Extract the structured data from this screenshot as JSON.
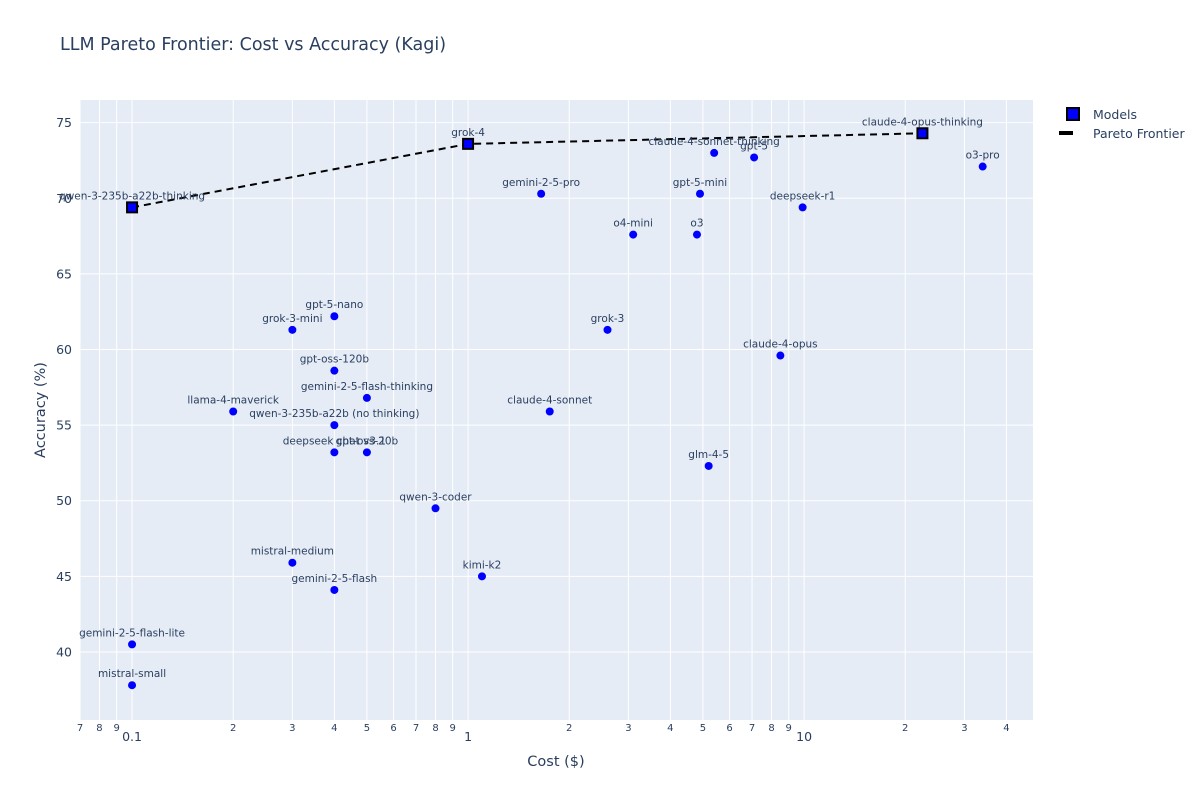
{
  "chart_data": {
    "type": "scatter",
    "title": "LLM Pareto Frontier: Cost vs Accuracy (Kagi)",
    "xlabel": "Cost ($)",
    "ylabel": "Accuracy (%)",
    "x_scale": "log",
    "xlim": [
      0.07,
      48
    ],
    "ylim": [
      35.5,
      76.5
    ],
    "y_ticks": [
      40,
      45,
      50,
      55,
      60,
      65,
      70,
      75
    ],
    "x_ticks_major": [
      {
        "value": 0.1,
        "label": "0.1"
      },
      {
        "value": 1,
        "label": "1"
      },
      {
        "value": 10,
        "label": "10"
      }
    ],
    "x_ticks_minor": [
      {
        "value": 0.07,
        "label": "7"
      },
      {
        "value": 0.08,
        "label": "8"
      },
      {
        "value": 0.09,
        "label": "9"
      },
      {
        "value": 0.2,
        "label": "2"
      },
      {
        "value": 0.3,
        "label": "3"
      },
      {
        "value": 0.4,
        "label": "4"
      },
      {
        "value": 0.5,
        "label": "5"
      },
      {
        "value": 0.6,
        "label": "6"
      },
      {
        "value": 0.7,
        "label": "7"
      },
      {
        "value": 0.8,
        "label": "8"
      },
      {
        "value": 0.9,
        "label": "9"
      },
      {
        "value": 2,
        "label": "2"
      },
      {
        "value": 3,
        "label": "3"
      },
      {
        "value": 4,
        "label": "4"
      },
      {
        "value": 5,
        "label": "5"
      },
      {
        "value": 6,
        "label": "6"
      },
      {
        "value": 7,
        "label": "7"
      },
      {
        "value": 8,
        "label": "8"
      },
      {
        "value": 9,
        "label": "9"
      },
      {
        "value": 20,
        "label": "2"
      },
      {
        "value": 30,
        "label": "3"
      },
      {
        "value": 40,
        "label": "4"
      }
    ],
    "grid": true,
    "legend_position": "top-right-outside",
    "colors": {
      "marker": "#0000ff",
      "frontier_line": "#000000",
      "plot_bg": "#e5ecf6",
      "grid": "#ffffff",
      "text": "#2a3f5f"
    },
    "series": [
      {
        "name": "Models",
        "points": [
          {
            "label": "qwen-3-235b-a22b-thinking",
            "x": 0.1,
            "y": 69.4
          },
          {
            "label": "gemini-2-5-flash-lite",
            "x": 0.1,
            "y": 40.5
          },
          {
            "label": "mistral-small",
            "x": 0.1,
            "y": 37.8
          },
          {
            "label": "llama-4-maverick",
            "x": 0.2,
            "y": 55.9
          },
          {
            "label": "grok-3-mini",
            "x": 0.3,
            "y": 61.3
          },
          {
            "label": "mistral-medium",
            "x": 0.3,
            "y": 45.9
          },
          {
            "label": "gpt-5-nano",
            "x": 0.4,
            "y": 62.2
          },
          {
            "label": "gpt-oss-120b",
            "x": 0.4,
            "y": 58.6
          },
          {
            "label": "qwen-3-235b-a22b (no thinking)",
            "x": 0.4,
            "y": 55.0
          },
          {
            "label": "deepseek chat v3.1",
            "x": 0.4,
            "y": 53.2
          },
          {
            "label": "gemini-2-5-flash",
            "x": 0.4,
            "y": 44.1
          },
          {
            "label": "gemini-2-5-flash-thinking",
            "x": 0.5,
            "y": 56.8
          },
          {
            "label": "gpt-oss-20b",
            "x": 0.5,
            "y": 53.2
          },
          {
            "label": "qwen-3-coder",
            "x": 0.8,
            "y": 49.5
          },
          {
            "label": "grok-4",
            "x": 1.0,
            "y": 73.6
          },
          {
            "label": "kimi-k2",
            "x": 1.1,
            "y": 45.0
          },
          {
            "label": "gemini-2-5-pro",
            "x": 1.65,
            "y": 70.3
          },
          {
            "label": "claude-4-sonnet",
            "x": 1.75,
            "y": 55.9
          },
          {
            "label": "grok-3",
            "x": 2.6,
            "y": 61.3
          },
          {
            "label": "o4-mini",
            "x": 3.1,
            "y": 67.6
          },
          {
            "label": "o3",
            "x": 4.8,
            "y": 67.6
          },
          {
            "label": "gpt-5-mini",
            "x": 4.9,
            "y": 70.3
          },
          {
            "label": "glm-4-5",
            "x": 5.2,
            "y": 52.3
          },
          {
            "label": "claude-4-sonnet-thinking",
            "x": 5.4,
            "y": 73.0
          },
          {
            "label": "gpt-5",
            "x": 7.1,
            "y": 72.7
          },
          {
            "label": "claude-4-opus",
            "x": 8.5,
            "y": 59.6
          },
          {
            "label": "deepseek-r1",
            "x": 9.9,
            "y": 69.4
          },
          {
            "label": "claude-4-opus-thinking",
            "x": 22.5,
            "y": 74.3
          },
          {
            "label": "o3-pro",
            "x": 34,
            "y": 72.1
          }
        ]
      },
      {
        "name": "Pareto Frontier",
        "points": [
          {
            "x": 0.1,
            "y": 69.4
          },
          {
            "x": 1.0,
            "y": 73.6
          },
          {
            "x": 22.5,
            "y": 74.3
          }
        ]
      }
    ]
  }
}
